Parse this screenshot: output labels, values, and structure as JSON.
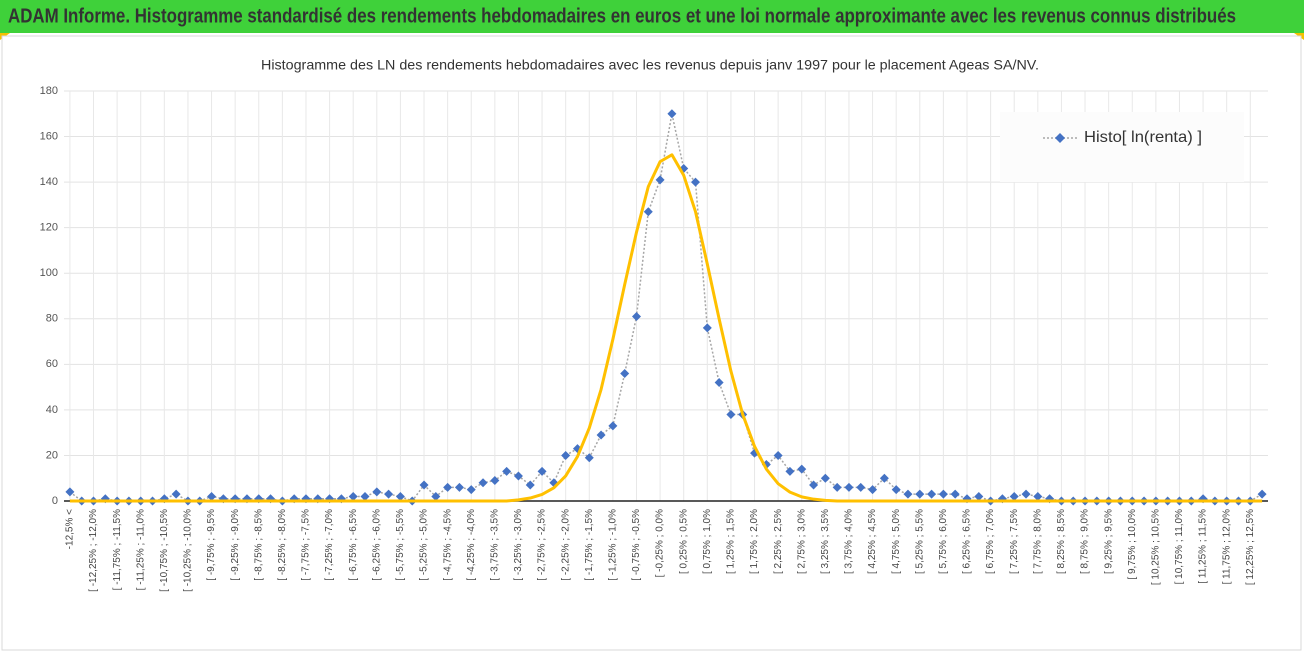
{
  "header": {
    "title": "ADAM Informe. Histogramme standardisé des rendements hebdomadaires en euros et une loi normale approximante avec les revenus connus distribués"
  },
  "chart_data": {
    "type": "line",
    "title": "Histogramme des LN des rendements hebdomadaires avec les revenus depuis janv 1997 pour le placement Ageas SA/NV.",
    "categories": [
      "-12,5% <",
      null,
      "[ -12,25% ; -12,0%",
      null,
      "[ -11,75% ; -11,5%",
      null,
      "[ -11,25% ; -11,0%",
      null,
      "[ -10,75% ; -10,5%",
      null,
      "[ -10,25% ; -10,0%",
      null,
      "[ -9,75% ; -9,5%",
      null,
      "[ -9,25% ; -9,0%",
      null,
      "[ -8,75% ; -8,5%",
      null,
      "[ -8,25% ; -8,0%",
      null,
      "[ -7,75% ; -7,5%",
      null,
      "[ -7,25% ; -7,0%",
      null,
      "[ -6,75% ; -6,5%",
      null,
      "[ -6,25% ; -6,0%",
      null,
      "[ -5,75% ; -5,5%",
      null,
      "[ -5,25% ; -5,0%",
      null,
      "[ -4,75% ; -4,5%",
      null,
      "[ -4,25% ; -4,0%",
      null,
      "[ -3,75% ; -3,5%",
      null,
      "[ -3,25% ; -3,0%",
      null,
      "[ -2,75% ; -2,5%",
      null,
      "[ -2,25% ; -2,0%",
      null,
      "[ -1,75% ; -1,5%",
      null,
      "[ -1,25% ; -1,0%",
      null,
      "[ -0,75% ; -0,5%",
      null,
      "[ -0,25% ; 0,0%",
      null,
      "[ 0,25% ; 0,5%",
      null,
      "[ 0,75% ; 1,0%",
      null,
      "[ 1,25% ; 1,5%",
      null,
      "[ 1,75% ; 2,0%",
      null,
      "[ 2,25% ; 2,5%",
      null,
      "[ 2,75% ; 3,0%",
      null,
      "[ 3,25% ; 3,5%",
      null,
      "[ 3,75% ; 4,0%",
      null,
      "[ 4,25% ; 4,5%",
      null,
      "[ 4,75% ; 5,0%",
      null,
      "[ 5,25% ; 5,5%",
      null,
      "[ 5,75% ; 6,0%",
      null,
      "[ 6,25% ; 6,5%",
      null,
      "[ 6,75% ; 7,0%",
      null,
      "[ 7,25% ; 7,5%",
      null,
      "[ 7,75% ; 8,0%",
      null,
      "[ 8,25% ; 8,5%",
      null,
      "[ 8,75% ; 9,0%",
      null,
      "[ 9,25% ; 9,5%",
      null,
      "[ 9,75% ; 10,0%",
      null,
      "[ 10,25% ; 10,5%",
      null,
      "[ 10,75% ; 11,0%",
      null,
      "[ 11,25% ; 11,5%",
      null,
      "[ 11,75% ; 12,0%",
      null,
      "[ 12,25% ; 12,5%",
      null
    ],
    "series": [
      {
        "name": "Histo[ ln(renta) ]",
        "color": "#4472c4",
        "line_color": "#a6a6a6",
        "marker": "diamond",
        "values": [
          4,
          0,
          0,
          1,
          0,
          0,
          0,
          0,
          1,
          3,
          0,
          0,
          2,
          1,
          1,
          1,
          1,
          1,
          0,
          1,
          1,
          1,
          1,
          1,
          2,
          2,
          4,
          3,
          2,
          0,
          7,
          2,
          6,
          6,
          5,
          8,
          9,
          13,
          11,
          7,
          13,
          8,
          20,
          23,
          19,
          29,
          33,
          56,
          81,
          127,
          141,
          170,
          146,
          140,
          76,
          52,
          38,
          38,
          21,
          16,
          20,
          13,
          14,
          7,
          10,
          6,
          6,
          6,
          5,
          10,
          5,
          3,
          3,
          3,
          3,
          3,
          1,
          2,
          0,
          1,
          2,
          3,
          2,
          1,
          0,
          0,
          0,
          0,
          0,
          0,
          0,
          0,
          0,
          0,
          0,
          0,
          1,
          0,
          0,
          0,
          0,
          3
        ]
      },
      {
        "color": "#ffc000",
        "values": [
          0,
          0,
          0,
          0,
          0,
          0,
          0,
          0,
          0,
          0,
          0,
          0,
          0,
          0,
          0,
          0,
          0,
          0,
          0,
          0,
          0,
          0,
          0,
          0,
          0,
          0,
          0,
          0,
          0,
          0,
          0,
          0,
          0,
          0,
          0,
          0,
          0,
          0,
          0.5,
          1.3,
          2.9,
          5.8,
          11,
          19.5,
          32,
          49,
          71,
          95,
          118,
          138,
          149,
          152,
          143,
          127,
          104,
          80,
          57,
          38,
          24,
          14,
          7.6,
          3.9,
          1.8,
          0.8,
          0.3,
          0,
          0,
          0,
          0,
          0,
          0,
          0,
          0,
          0,
          0,
          0,
          0,
          0,
          0,
          0,
          0,
          0,
          0,
          0,
          0,
          0,
          0,
          0,
          0,
          0,
          0,
          0,
          0,
          0,
          0,
          0,
          0,
          0,
          0,
          0,
          0,
          0
        ]
      }
    ],
    "ylim": [
      0,
      180
    ],
    "yticks": [
      0,
      20,
      40,
      60,
      80,
      100,
      120,
      140,
      160,
      180
    ],
    "grid": true,
    "legend": "top-right"
  }
}
